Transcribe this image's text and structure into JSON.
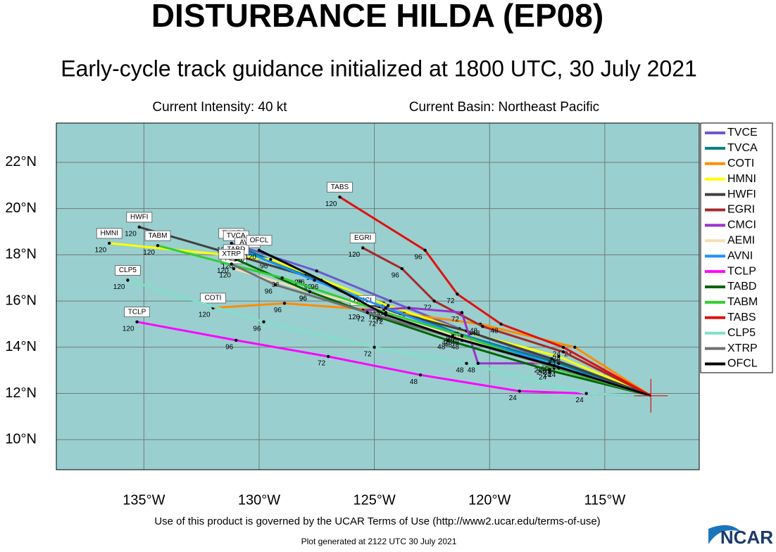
{
  "title": "DISTURBANCE HILDA (EP08)",
  "subtitle": "Early-cycle track guidance initialized at 1800 UTC, 30 July 2021",
  "intensity": "Current Intensity: 40 kt",
  "basin": "Current Basin: Northeast Pacific",
  "terms": "Use of this product is governed by the UCAR Terms of Use (http://www2.ucar.edu/terms-of-use)",
  "generated": "Plot generated at 2122 UTC   30 July 2021",
  "logo": "NCAR",
  "map": {
    "xlim": [
      -138.8,
      -110.9
    ],
    "ylim": [
      8.7,
      23.7
    ],
    "xticks": [
      {
        "value": -135,
        "label": "135°W"
      },
      {
        "value": -130,
        "label": "130°W"
      },
      {
        "value": -125,
        "label": "125°W"
      },
      {
        "value": -120,
        "label": "120°W"
      },
      {
        "value": -115,
        "label": "115°W"
      }
    ],
    "yticks": [
      {
        "value": 10,
        "label": "10°N"
      },
      {
        "value": 12,
        "label": "12°N"
      },
      {
        "value": 14,
        "label": "14°N"
      },
      {
        "value": 16,
        "label": "16°N"
      },
      {
        "value": 18,
        "label": "18°N"
      },
      {
        "value": 20,
        "label": "20°N"
      },
      {
        "value": 22,
        "label": "22°N"
      }
    ],
    "grid": true,
    "forecast_hours": [
      0,
      24,
      48,
      72,
      96,
      120
    ],
    "tracks": [
      {
        "name": "TVCE",
        "color": "#6a5acd",
        "lon": [
          -113,
          -117.2,
          -121.3,
          -124.3,
          -127.5,
          -131.2
        ],
        "lat": [
          11.9,
          13.4,
          14.8,
          16.0,
          17.3,
          18.5
        ]
      },
      {
        "name": "TVCA",
        "color": "#008080",
        "lon": [
          -113,
          -117.0,
          -121.4,
          -124.6,
          -127.9,
          -131.0
        ],
        "lat": [
          11.9,
          13.3,
          14.6,
          15.9,
          17.1,
          18.4
        ]
      },
      {
        "name": "COTI",
        "color": "#ff8c00",
        "lon": [
          -113,
          -116.3,
          -120.4,
          -124.8,
          -128.9,
          -132.0
        ],
        "lat": [
          11.9,
          14.0,
          15.0,
          15.6,
          15.9,
          15.7
        ]
      },
      {
        "name": "HMNI",
        "color": "#ffff00",
        "lon": [
          -113,
          -117.0,
          -120.8,
          -124.4,
          -129.5,
          -136.5
        ],
        "lat": [
          11.9,
          13.6,
          14.6,
          15.8,
          17.8,
          18.5
        ]
      },
      {
        "name": "HWFI",
        "color": "#404040",
        "lon": [
          -113,
          -117.3,
          -121.0,
          -124.8,
          -128.0,
          -135.2
        ],
        "lat": [
          11.9,
          13.5,
          14.7,
          15.7,
          17.1,
          19.2
        ]
      },
      {
        "name": "EGRI",
        "color": "#a52a2a",
        "lon": [
          -113,
          -116.8,
          -120.3,
          -122.4,
          -123.8,
          -125.5
        ],
        "lat": [
          11.9,
          13.8,
          14.9,
          16.0,
          17.4,
          18.3
        ]
      },
      {
        "name": "CMCI",
        "color": "#9932cc",
        "lon": [
          -113,
          -117.6,
          -120.5,
          -121.2,
          -123.5,
          -125.5
        ],
        "lat": [
          11.9,
          13.3,
          13.3,
          15.5,
          15.7,
          15.6
        ]
      },
      {
        "name": "AEMI",
        "color": "#f5deb3",
        "lon": [
          -113,
          -117.5,
          -121.6,
          -124.6,
          -127.8,
          -131.1
        ],
        "lat": [
          11.9,
          13.2,
          14.5,
          15.6,
          16.4,
          17.4
        ]
      },
      {
        "name": "AVNI",
        "color": "#1e90ff",
        "lon": [
          -113,
          -117.4,
          -121.5,
          -124.5,
          -127.6,
          -130.5
        ],
        "lat": [
          11.9,
          13.3,
          14.6,
          15.7,
          16.9,
          18.1
        ]
      },
      {
        "name": "TCLP",
        "color": "#ff00ff",
        "lon": [
          -113,
          -118.7,
          -123.0,
          -127.0,
          -131.0,
          -135.3
        ],
        "lat": [
          11.9,
          12.1,
          12.8,
          13.6,
          14.3,
          15.1
        ]
      },
      {
        "name": "TABD",
        "color": "#006400",
        "lon": [
          -113,
          -117.4,
          -121.8,
          -124.8,
          -127.8,
          -131.0
        ],
        "lat": [
          11.9,
          13.0,
          14.3,
          15.3,
          16.4,
          17.8
        ]
      },
      {
        "name": "TABM",
        "color": "#32cd32",
        "lon": [
          -113,
          -117.2,
          -121.2,
          -124.5,
          -129.0,
          -134.4
        ],
        "lat": [
          11.9,
          13.1,
          14.5,
          15.5,
          17.0,
          18.4
        ]
      },
      {
        "name": "TABS",
        "color": "#e01010",
        "lon": [
          -113,
          -116.8,
          -119.5,
          -121.4,
          -122.8,
          -126.5
        ],
        "lat": [
          11.9,
          14.0,
          15.0,
          16.3,
          18.2,
          20.5
        ]
      },
      {
        "name": "CLP5",
        "color": "#7fe0c8",
        "lon": [
          -113,
          -115.8,
          -121.0,
          -125.0,
          -129.8,
          -135.7
        ],
        "lat": [
          11.9,
          12.0,
          13.3,
          14.0,
          15.1,
          16.9
        ]
      },
      {
        "name": "XTRP",
        "color": "#707070",
        "lon": [
          -113,
          -117.0,
          -121.2,
          -125.3,
          -129.3,
          -131.2
        ],
        "lat": [
          11.9,
          13.1,
          14.3,
          15.5,
          16.7,
          17.6
        ]
      },
      {
        "name": "OFCL",
        "color": "#000000",
        "lon": [
          -113,
          -117.2,
          -121.5,
          -124.5,
          -127.3,
          -130.0
        ],
        "lat": [
          11.9,
          13.2,
          14.4,
          15.4,
          16.9,
          18.2
        ]
      }
    ]
  }
}
